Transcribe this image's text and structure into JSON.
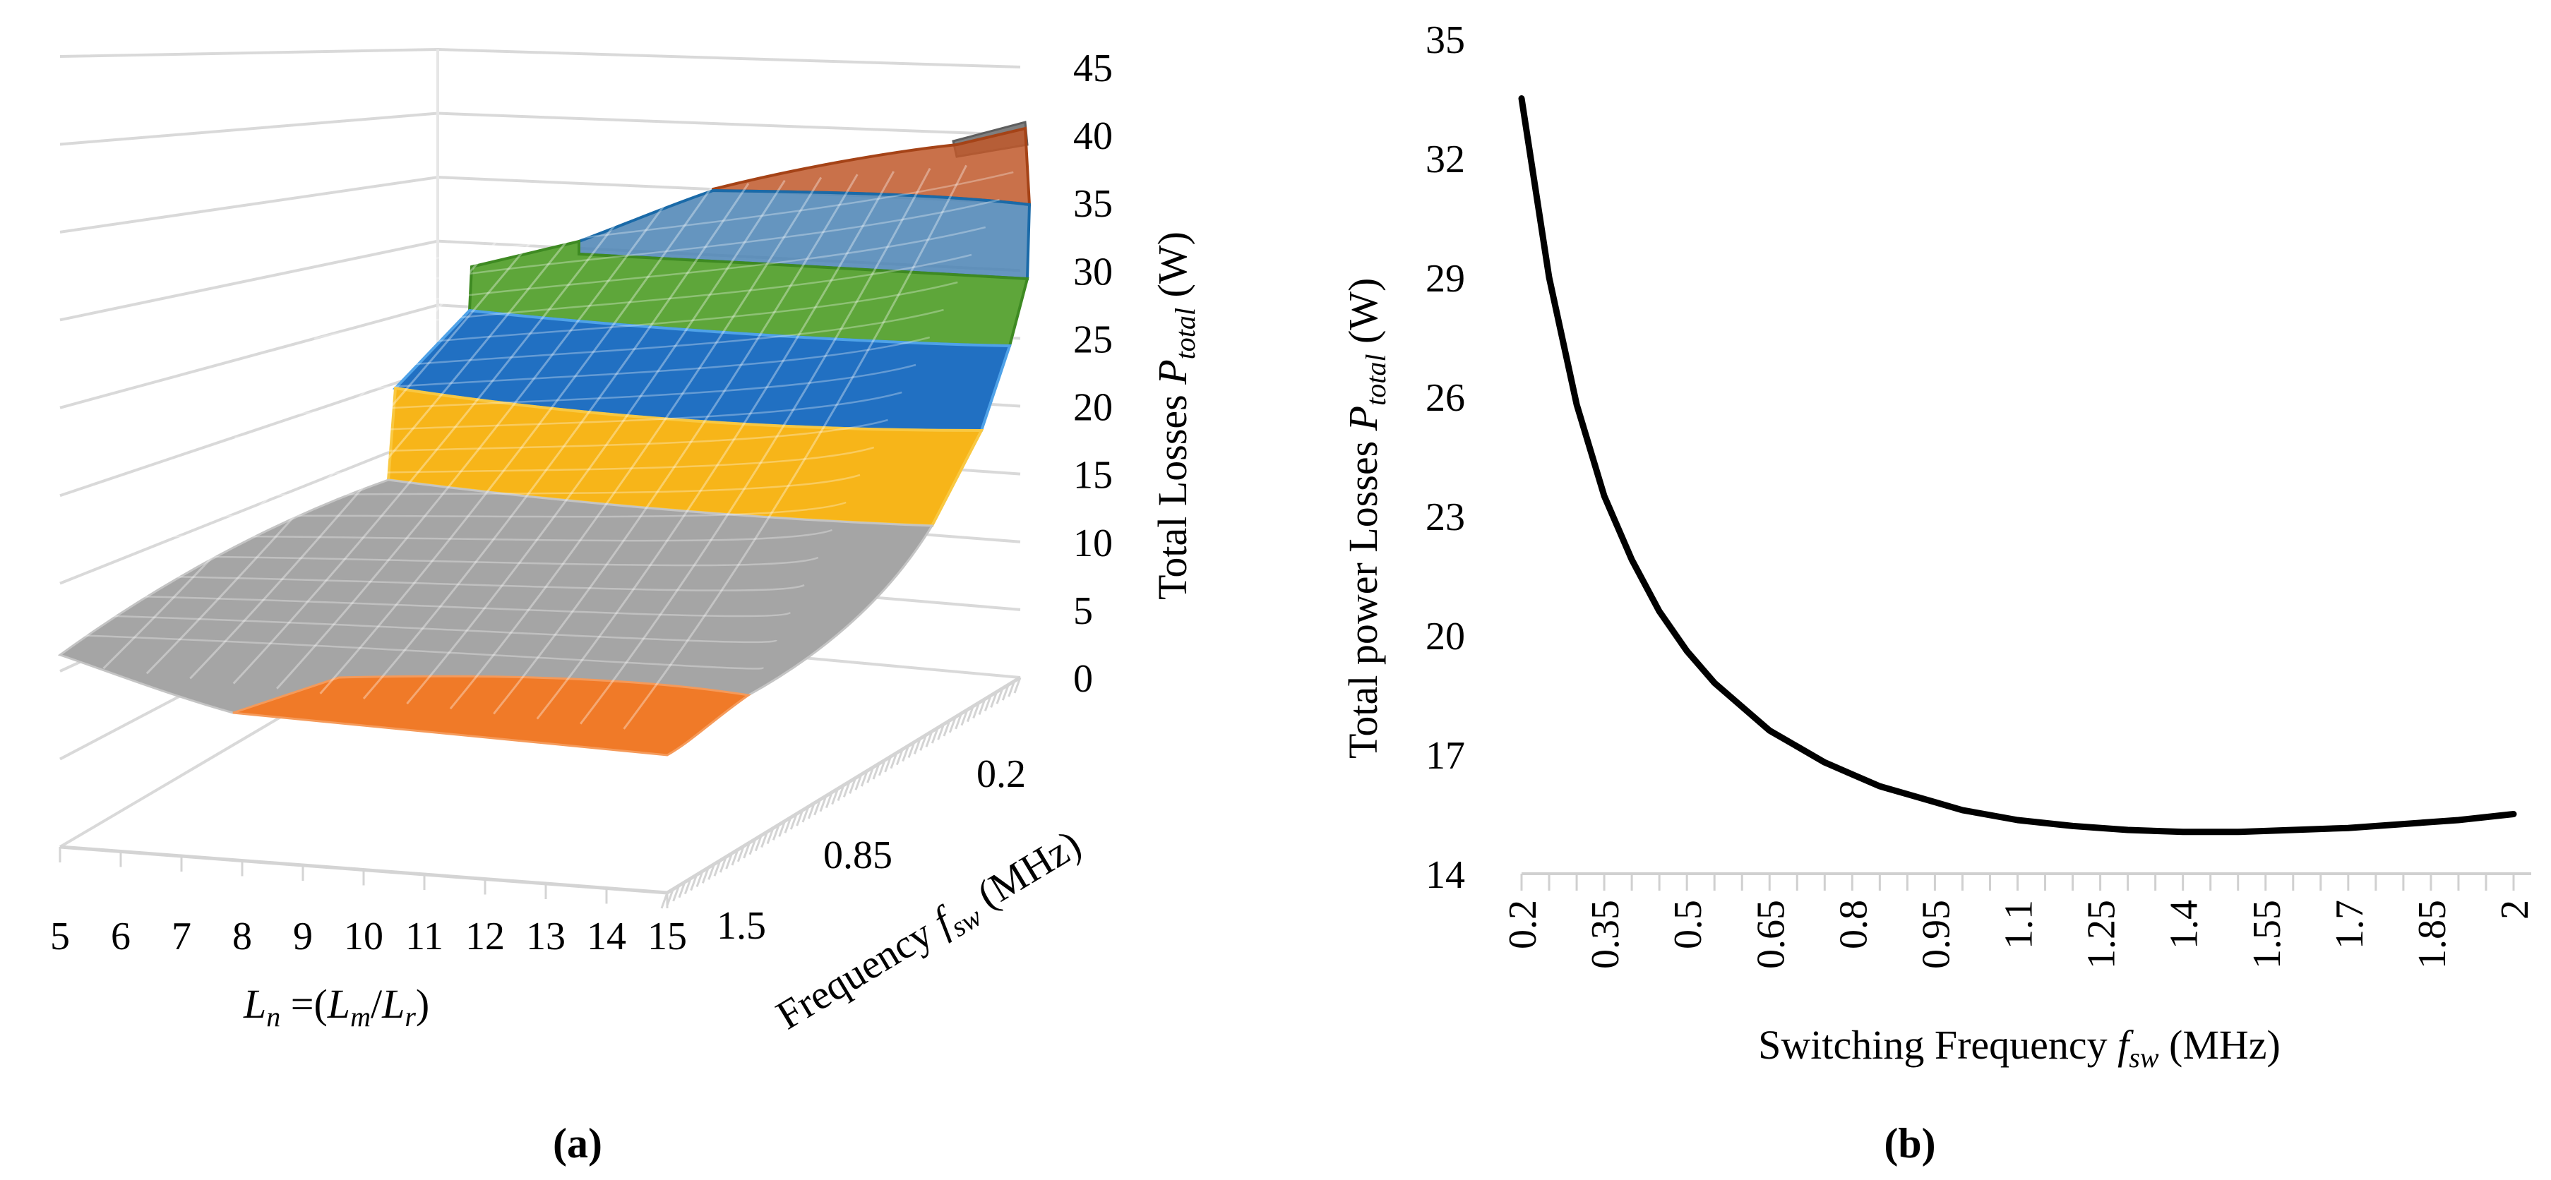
{
  "chart_data": [
    {
      "panel_label": "(a)",
      "type": "surface",
      "z_axis": {
        "label_parts": [
          "Total Losses ",
          "P",
          "total",
          " (W)"
        ],
        "ticks": [
          "0",
          "5",
          "10",
          "15",
          "20",
          "25",
          "30",
          "35",
          "40",
          "45"
        ],
        "range": [
          0,
          45
        ]
      },
      "x_axis": {
        "label_parts": [
          "L",
          "n",
          " =(",
          "L",
          "m",
          "/",
          "L",
          "r",
          ")"
        ],
        "ticks": [
          "5",
          "6",
          "7",
          "8",
          "9",
          "10",
          "11",
          "12",
          "13",
          "14",
          "15"
        ]
      },
      "y_axis": {
        "label_parts": [
          "Frequency ",
          "f",
          "sw",
          " (MHz)"
        ],
        "ticks": [
          "0.2",
          "0.85",
          "1.5"
        ]
      },
      "surface_bands": [
        {
          "range": [
            0,
            5
          ],
          "color": "#f07a28"
        },
        {
          "range": [
            10,
            15
          ],
          "color": "#a5a5a5"
        },
        {
          "range": [
            15,
            20
          ],
          "color": "#f7b519"
        },
        {
          "range": [
            20,
            25
          ],
          "color": "#2170c2"
        },
        {
          "range": [
            25,
            30
          ],
          "color": "#5ea63a"
        },
        {
          "range": [
            30,
            35
          ],
          "color": "#4a82b4"
        },
        {
          "range": [
            35,
            40
          ],
          "color": "#c0582a"
        },
        {
          "range": [
            40,
            45
          ],
          "color": "#7f7f7f"
        }
      ]
    },
    {
      "panel_label": "(b)",
      "type": "line",
      "xlabel_parts": [
        "Switching Frequency ",
        "f",
        "sw",
        " (MHz)"
      ],
      "ylabel_parts": [
        "Total power Losses ",
        "P",
        "total",
        " (W)"
      ],
      "xlim": [
        0.2,
        2.0
      ],
      "ylim": [
        14,
        35
      ],
      "x_ticks": [
        "0.2",
        "0.35",
        "0.5",
        "0.65",
        "0.8",
        "0.95",
        "1.1",
        "1.25",
        "1.4",
        "1.55",
        "1.7",
        "1.85",
        "2"
      ],
      "y_ticks": [
        "14",
        "17",
        "20",
        "23",
        "26",
        "29",
        "32",
        "35"
      ],
      "series": [
        {
          "color": "#000000",
          "x": [
            0.2,
            0.25,
            0.3,
            0.35,
            0.4,
            0.45,
            0.5,
            0.55,
            0.6,
            0.65,
            0.7,
            0.75,
            0.8,
            0.85,
            0.9,
            0.95,
            1.0,
            1.1,
            1.2,
            1.3,
            1.4,
            1.5,
            1.6,
            1.7,
            1.8,
            1.9,
            2.0
          ],
          "y": [
            33.5,
            29.0,
            25.8,
            23.5,
            21.9,
            20.6,
            19.6,
            18.8,
            18.2,
            17.6,
            17.2,
            16.8,
            16.5,
            16.2,
            16.0,
            15.8,
            15.6,
            15.35,
            15.2,
            15.1,
            15.05,
            15.05,
            15.1,
            15.15,
            15.25,
            15.35,
            15.5
          ]
        }
      ]
    }
  ]
}
